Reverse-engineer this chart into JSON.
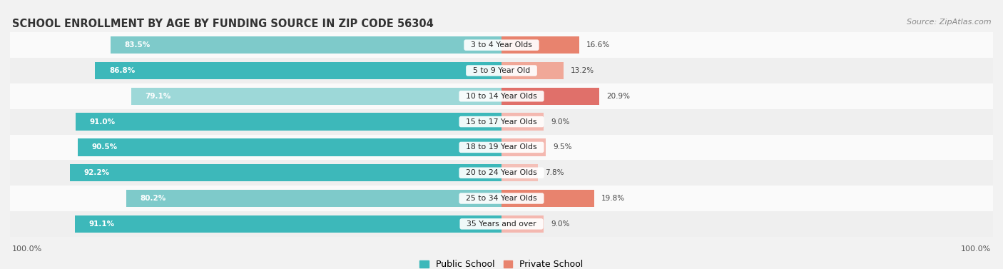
{
  "title": "SCHOOL ENROLLMENT BY AGE BY FUNDING SOURCE IN ZIP CODE 56304",
  "source": "Source: ZipAtlas.com",
  "categories": [
    "3 to 4 Year Olds",
    "5 to 9 Year Old",
    "10 to 14 Year Olds",
    "15 to 17 Year Olds",
    "18 to 19 Year Olds",
    "20 to 24 Year Olds",
    "25 to 34 Year Olds",
    "35 Years and over"
  ],
  "public_values": [
    83.5,
    86.8,
    79.1,
    91.0,
    90.5,
    92.2,
    80.2,
    91.1
  ],
  "private_values": [
    16.6,
    13.2,
    20.9,
    9.0,
    9.5,
    7.8,
    19.8,
    9.0
  ],
  "public_colors": [
    "#7ecaca",
    "#3db8ba",
    "#9dd8d8",
    "#3db8ba",
    "#3db8ba",
    "#3db8ba",
    "#7ecaca",
    "#3db8ba"
  ],
  "private_colors": [
    "#e8836e",
    "#f0a898",
    "#e0706a",
    "#f4b8b0",
    "#f4b8b0",
    "#f4c0b8",
    "#e8836e",
    "#f4b8b0"
  ],
  "bar_height": 0.68,
  "background_color": "#f2f2f2",
  "row_colors": [
    "#fafafa",
    "#efefef",
    "#fafafa",
    "#efefef",
    "#fafafa",
    "#efefef",
    "#fafafa",
    "#efefef"
  ],
  "left_axis_label": "100.0%",
  "right_axis_label": "100.0%",
  "legend_public": "Public School",
  "legend_private": "Private School",
  "legend_public_color": "#3db8ba",
  "legend_private_color": "#e8836e"
}
